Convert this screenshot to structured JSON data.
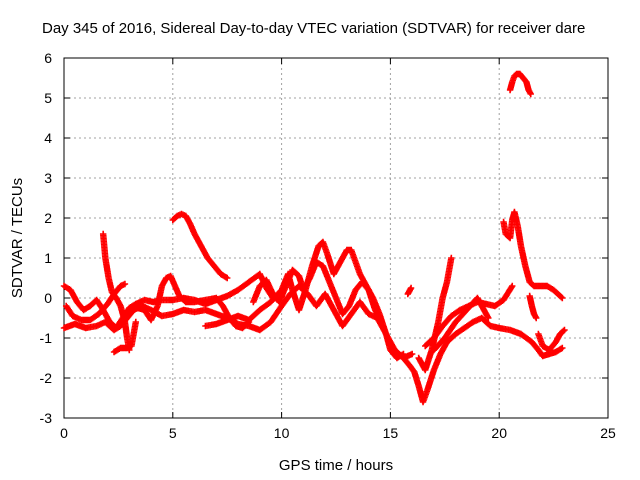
{
  "chart_data": {
    "type": "scatter",
    "title": "Day 345 of 2016, Sidereal Day-to-day VTEC variation (SDTVAR) for receiver dare",
    "xlabel": "GPS time / hours",
    "ylabel": "SDTVAR / TECUs",
    "xlim": [
      0,
      25
    ],
    "ylim": [
      -3,
      6
    ],
    "xticks": [
      0,
      5,
      10,
      15,
      20,
      25
    ],
    "yticks": [
      -3,
      -2,
      -1,
      0,
      1,
      2,
      3,
      4,
      5,
      6
    ],
    "grid": true,
    "marker": "plus",
    "color": "#ff0000",
    "series": [
      {
        "name": "s1",
        "points": [
          [
            0.0,
            0.3
          ],
          [
            0.3,
            0.2
          ],
          [
            0.6,
            -0.1
          ],
          [
            0.9,
            -0.3
          ],
          [
            1.2,
            -0.2
          ],
          [
            1.5,
            -0.05
          ],
          [
            1.8,
            -0.3
          ],
          [
            2.1,
            -0.6
          ],
          [
            2.4,
            -0.75
          ],
          [
            2.7,
            -0.5
          ],
          [
            3.0,
            -0.25
          ],
          [
            3.3,
            -0.15
          ],
          [
            3.7,
            -0.05
          ],
          [
            4.1,
            -0.1
          ],
          [
            4.5,
            -0.05
          ],
          [
            5.0,
            -0.05
          ],
          [
            5.5,
            0.0
          ],
          [
            6.0,
            -0.05
          ],
          [
            6.5,
            -0.15
          ],
          [
            7.0,
            -0.05
          ],
          [
            7.5,
            0.05
          ],
          [
            8.0,
            0.2
          ],
          [
            8.5,
            0.4
          ],
          [
            9.0,
            0.6
          ],
          [
            9.3,
            0.25
          ],
          [
            9.6,
            0.0
          ]
        ]
      },
      {
        "name": "s2",
        "points": [
          [
            0.0,
            -0.75
          ],
          [
            0.5,
            -0.65
          ],
          [
            1.0,
            -0.75
          ],
          [
            1.5,
            -0.7
          ],
          [
            1.9,
            -0.6
          ],
          [
            2.3,
            -0.8
          ],
          [
            2.6,
            -0.7
          ],
          [
            2.9,
            -0.5
          ],
          [
            3.2,
            -0.3
          ],
          [
            3.6,
            -0.2
          ],
          [
            4.0,
            -0.3
          ],
          [
            4.5,
            -0.45
          ],
          [
            5.0,
            -0.4
          ],
          [
            5.5,
            -0.3
          ],
          [
            6.0,
            -0.35
          ],
          [
            6.5,
            -0.3
          ],
          [
            7.0,
            -0.4
          ],
          [
            7.5,
            -0.5
          ],
          [
            8.0,
            -0.65
          ],
          [
            8.5,
            -0.7
          ],
          [
            9.0,
            -0.8
          ],
          [
            9.5,
            -0.6
          ],
          [
            10.0,
            -0.2
          ],
          [
            10.4,
            0.1
          ],
          [
            10.8,
            0.3
          ],
          [
            11.2,
            0.1
          ],
          [
            11.6,
            -0.2
          ],
          [
            12.0,
            0.1
          ],
          [
            12.4,
            -0.3
          ],
          [
            12.8,
            -0.7
          ],
          [
            13.2,
            -0.4
          ],
          [
            13.6,
            -0.1
          ],
          [
            14.0,
            -0.4
          ],
          [
            14.4,
            -0.5
          ],
          [
            14.8,
            -0.9
          ],
          [
            15.2,
            -1.3
          ],
          [
            15.6,
            -1.5
          ],
          [
            16.0,
            -1.4
          ]
        ]
      },
      {
        "name": "s3",
        "points": [
          [
            0.1,
            -0.2
          ],
          [
            0.4,
            -0.45
          ],
          [
            0.8,
            -0.55
          ],
          [
            1.2,
            -0.55
          ],
          [
            1.6,
            -0.4
          ],
          [
            2.0,
            -0.15
          ],
          [
            2.3,
            0.1
          ],
          [
            2.6,
            0.3
          ],
          [
            2.8,
            0.35
          ]
        ]
      },
      {
        "name": "s4",
        "points": [
          [
            1.8,
            1.6
          ],
          [
            1.9,
            1.0
          ],
          [
            2.05,
            0.5
          ],
          [
            2.2,
            0.15
          ],
          [
            2.4,
            0.0
          ],
          [
            2.6,
            -0.2
          ],
          [
            2.8,
            -0.6
          ],
          [
            2.9,
            -1.0
          ],
          [
            3.0,
            -1.3
          ]
        ]
      },
      {
        "name": "s5",
        "points": [
          [
            2.3,
            -1.35
          ],
          [
            2.6,
            -1.25
          ],
          [
            2.9,
            -1.25
          ],
          [
            3.1,
            -1.2
          ],
          [
            3.2,
            -0.9
          ],
          [
            3.3,
            -0.6
          ]
        ]
      },
      {
        "name": "s6",
        "points": [
          [
            3.4,
            -0.25
          ],
          [
            3.7,
            -0.3
          ],
          [
            4.0,
            -0.55
          ],
          [
            4.3,
            -0.2
          ],
          [
            4.5,
            0.3
          ],
          [
            4.7,
            0.5
          ],
          [
            4.9,
            0.55
          ],
          [
            5.1,
            0.3
          ],
          [
            5.3,
            0.05
          ],
          [
            5.6,
            -0.1
          ],
          [
            6.0,
            -0.1
          ],
          [
            6.5,
            -0.05
          ],
          [
            7.0,
            0.0
          ],
          [
            7.3,
            -0.2
          ],
          [
            7.6,
            -0.5
          ],
          [
            7.9,
            -0.7
          ],
          [
            8.2,
            -0.75
          ],
          [
            8.5,
            -0.6
          ]
        ]
      },
      {
        "name": "s7",
        "points": [
          [
            5.0,
            1.95
          ],
          [
            5.2,
            2.05
          ],
          [
            5.4,
            2.1
          ],
          [
            5.6,
            2.05
          ],
          [
            5.8,
            1.85
          ],
          [
            6.0,
            1.6
          ],
          [
            6.3,
            1.3
          ],
          [
            6.6,
            1.0
          ],
          [
            6.9,
            0.8
          ],
          [
            7.2,
            0.6
          ],
          [
            7.5,
            0.5
          ]
        ]
      },
      {
        "name": "s8",
        "points": [
          [
            6.5,
            -0.7
          ],
          [
            7.0,
            -0.65
          ],
          [
            7.5,
            -0.55
          ],
          [
            8.0,
            -0.45
          ],
          [
            8.5,
            -0.55
          ],
          [
            9.0,
            -0.3
          ],
          [
            9.5,
            -0.1
          ],
          [
            10.0,
            0.2
          ],
          [
            10.3,
            0.6
          ],
          [
            10.5,
            0.2
          ],
          [
            10.8,
            -0.3
          ],
          [
            11.1,
            0.2
          ],
          [
            11.4,
            0.8
          ],
          [
            11.7,
            1.3
          ],
          [
            11.9,
            1.4
          ],
          [
            12.1,
            1.1
          ],
          [
            12.4,
            0.6
          ],
          [
            12.7,
            0.9
          ],
          [
            13.0,
            1.2
          ],
          [
            13.2,
            1.2
          ],
          [
            13.4,
            0.9
          ],
          [
            13.6,
            0.6
          ],
          [
            13.9,
            0.3
          ],
          [
            14.2,
            0.0
          ],
          [
            14.5,
            -0.4
          ],
          [
            14.8,
            -0.9
          ],
          [
            15.0,
            -1.3
          ],
          [
            15.3,
            -1.5
          ],
          [
            15.6,
            -1.4
          ]
        ]
      },
      {
        "name": "s9",
        "points": [
          [
            8.7,
            -0.1
          ],
          [
            9.0,
            0.3
          ],
          [
            9.3,
            0.45
          ],
          [
            9.6,
            0.1
          ],
          [
            9.9,
            -0.1
          ],
          [
            10.2,
            0.3
          ],
          [
            10.5,
            0.7
          ],
          [
            10.8,
            0.55
          ],
          [
            11.0,
            0.2
          ],
          [
            11.3,
            0.5
          ],
          [
            11.6,
            0.9
          ],
          [
            11.9,
            0.8
          ],
          [
            12.2,
            0.4
          ],
          [
            12.5,
            0.0
          ],
          [
            12.8,
            -0.4
          ],
          [
            13.1,
            -0.2
          ],
          [
            13.4,
            0.2
          ],
          [
            13.7,
            0.4
          ],
          [
            14.0,
            0.2
          ],
          [
            14.3,
            -0.3
          ],
          [
            14.6,
            -0.6
          ]
        ]
      },
      {
        "name": "s10",
        "points": [
          [
            15.6,
            -1.5
          ],
          [
            15.9,
            -1.7
          ],
          [
            16.1,
            -1.85
          ],
          [
            16.3,
            -2.2
          ],
          [
            16.5,
            -2.6
          ],
          [
            16.7,
            -2.3
          ],
          [
            17.0,
            -1.8
          ],
          [
            17.3,
            -1.4
          ],
          [
            17.6,
            -1.1
          ],
          [
            18.0,
            -0.9
          ],
          [
            18.4,
            -0.75
          ],
          [
            18.8,
            -0.6
          ],
          [
            19.2,
            -0.5
          ],
          [
            19.6,
            -0.7
          ],
          [
            20.0,
            -0.75
          ],
          [
            20.5,
            -0.8
          ],
          [
            21.0,
            -0.9
          ],
          [
            21.5,
            -1.1
          ],
          [
            21.8,
            -1.3
          ],
          [
            22.0,
            -1.45
          ],
          [
            22.3,
            -1.4
          ],
          [
            22.6,
            -1.35
          ],
          [
            22.9,
            -1.25
          ]
        ]
      },
      {
        "name": "s11",
        "points": [
          [
            16.3,
            -1.5
          ],
          [
            16.6,
            -1.8
          ],
          [
            16.9,
            -1.3
          ],
          [
            17.2,
            -0.6
          ],
          [
            17.4,
            0.0
          ],
          [
            17.6,
            0.4
          ],
          [
            17.7,
            0.7
          ],
          [
            17.8,
            1.0
          ]
        ]
      },
      {
        "name": "s12",
        "points": [
          [
            16.6,
            -1.2
          ],
          [
            17.0,
            -1.0
          ],
          [
            17.4,
            -0.7
          ],
          [
            17.8,
            -0.45
          ],
          [
            18.2,
            -0.3
          ],
          [
            18.6,
            -0.2
          ],
          [
            19.0,
            -0.1
          ],
          [
            19.4,
            -0.15
          ],
          [
            19.8,
            -0.2
          ],
          [
            20.2,
            -0.05
          ],
          [
            20.6,
            0.3
          ]
        ]
      },
      {
        "name": "s13",
        "points": [
          [
            17.0,
            -1.3
          ],
          [
            17.5,
            -1.0
          ],
          [
            18.0,
            -0.6
          ],
          [
            18.5,
            -0.3
          ],
          [
            19.0,
            0.0
          ],
          [
            19.3,
            -0.3
          ],
          [
            19.5,
            -0.5
          ]
        ]
      },
      {
        "name": "s14",
        "points": [
          [
            15.8,
            0.1
          ],
          [
            15.95,
            0.25
          ]
        ]
      },
      {
        "name": "s15",
        "points": [
          [
            20.2,
            1.9
          ],
          [
            20.3,
            1.6
          ],
          [
            20.5,
            1.5
          ],
          [
            20.6,
            1.95
          ],
          [
            20.7,
            2.15
          ],
          [
            20.85,
            1.8
          ],
          [
            21.0,
            1.3
          ],
          [
            21.2,
            0.8
          ],
          [
            21.4,
            0.4
          ],
          [
            21.6,
            0.3
          ],
          [
            21.9,
            0.3
          ],
          [
            22.2,
            0.3
          ],
          [
            22.5,
            0.2
          ],
          [
            22.7,
            0.1
          ],
          [
            22.9,
            0.0
          ]
        ]
      },
      {
        "name": "s16",
        "points": [
          [
            21.4,
            0.05
          ],
          [
            21.5,
            -0.2
          ],
          [
            21.6,
            -0.4
          ],
          [
            21.7,
            -0.5
          ]
        ]
      },
      {
        "name": "s17",
        "points": [
          [
            21.8,
            -0.9
          ],
          [
            22.0,
            -1.2
          ],
          [
            22.3,
            -1.3
          ],
          [
            22.6,
            -1.1
          ],
          [
            22.8,
            -0.9
          ],
          [
            23.0,
            -0.8
          ]
        ]
      },
      {
        "name": "s18",
        "points": [
          [
            20.5,
            5.2
          ],
          [
            20.6,
            5.4
          ],
          [
            20.7,
            5.55
          ],
          [
            20.8,
            5.6
          ],
          [
            20.95,
            5.6
          ],
          [
            21.1,
            5.5
          ],
          [
            21.25,
            5.4
          ],
          [
            21.35,
            5.2
          ],
          [
            21.45,
            5.1
          ]
        ]
      }
    ]
  }
}
